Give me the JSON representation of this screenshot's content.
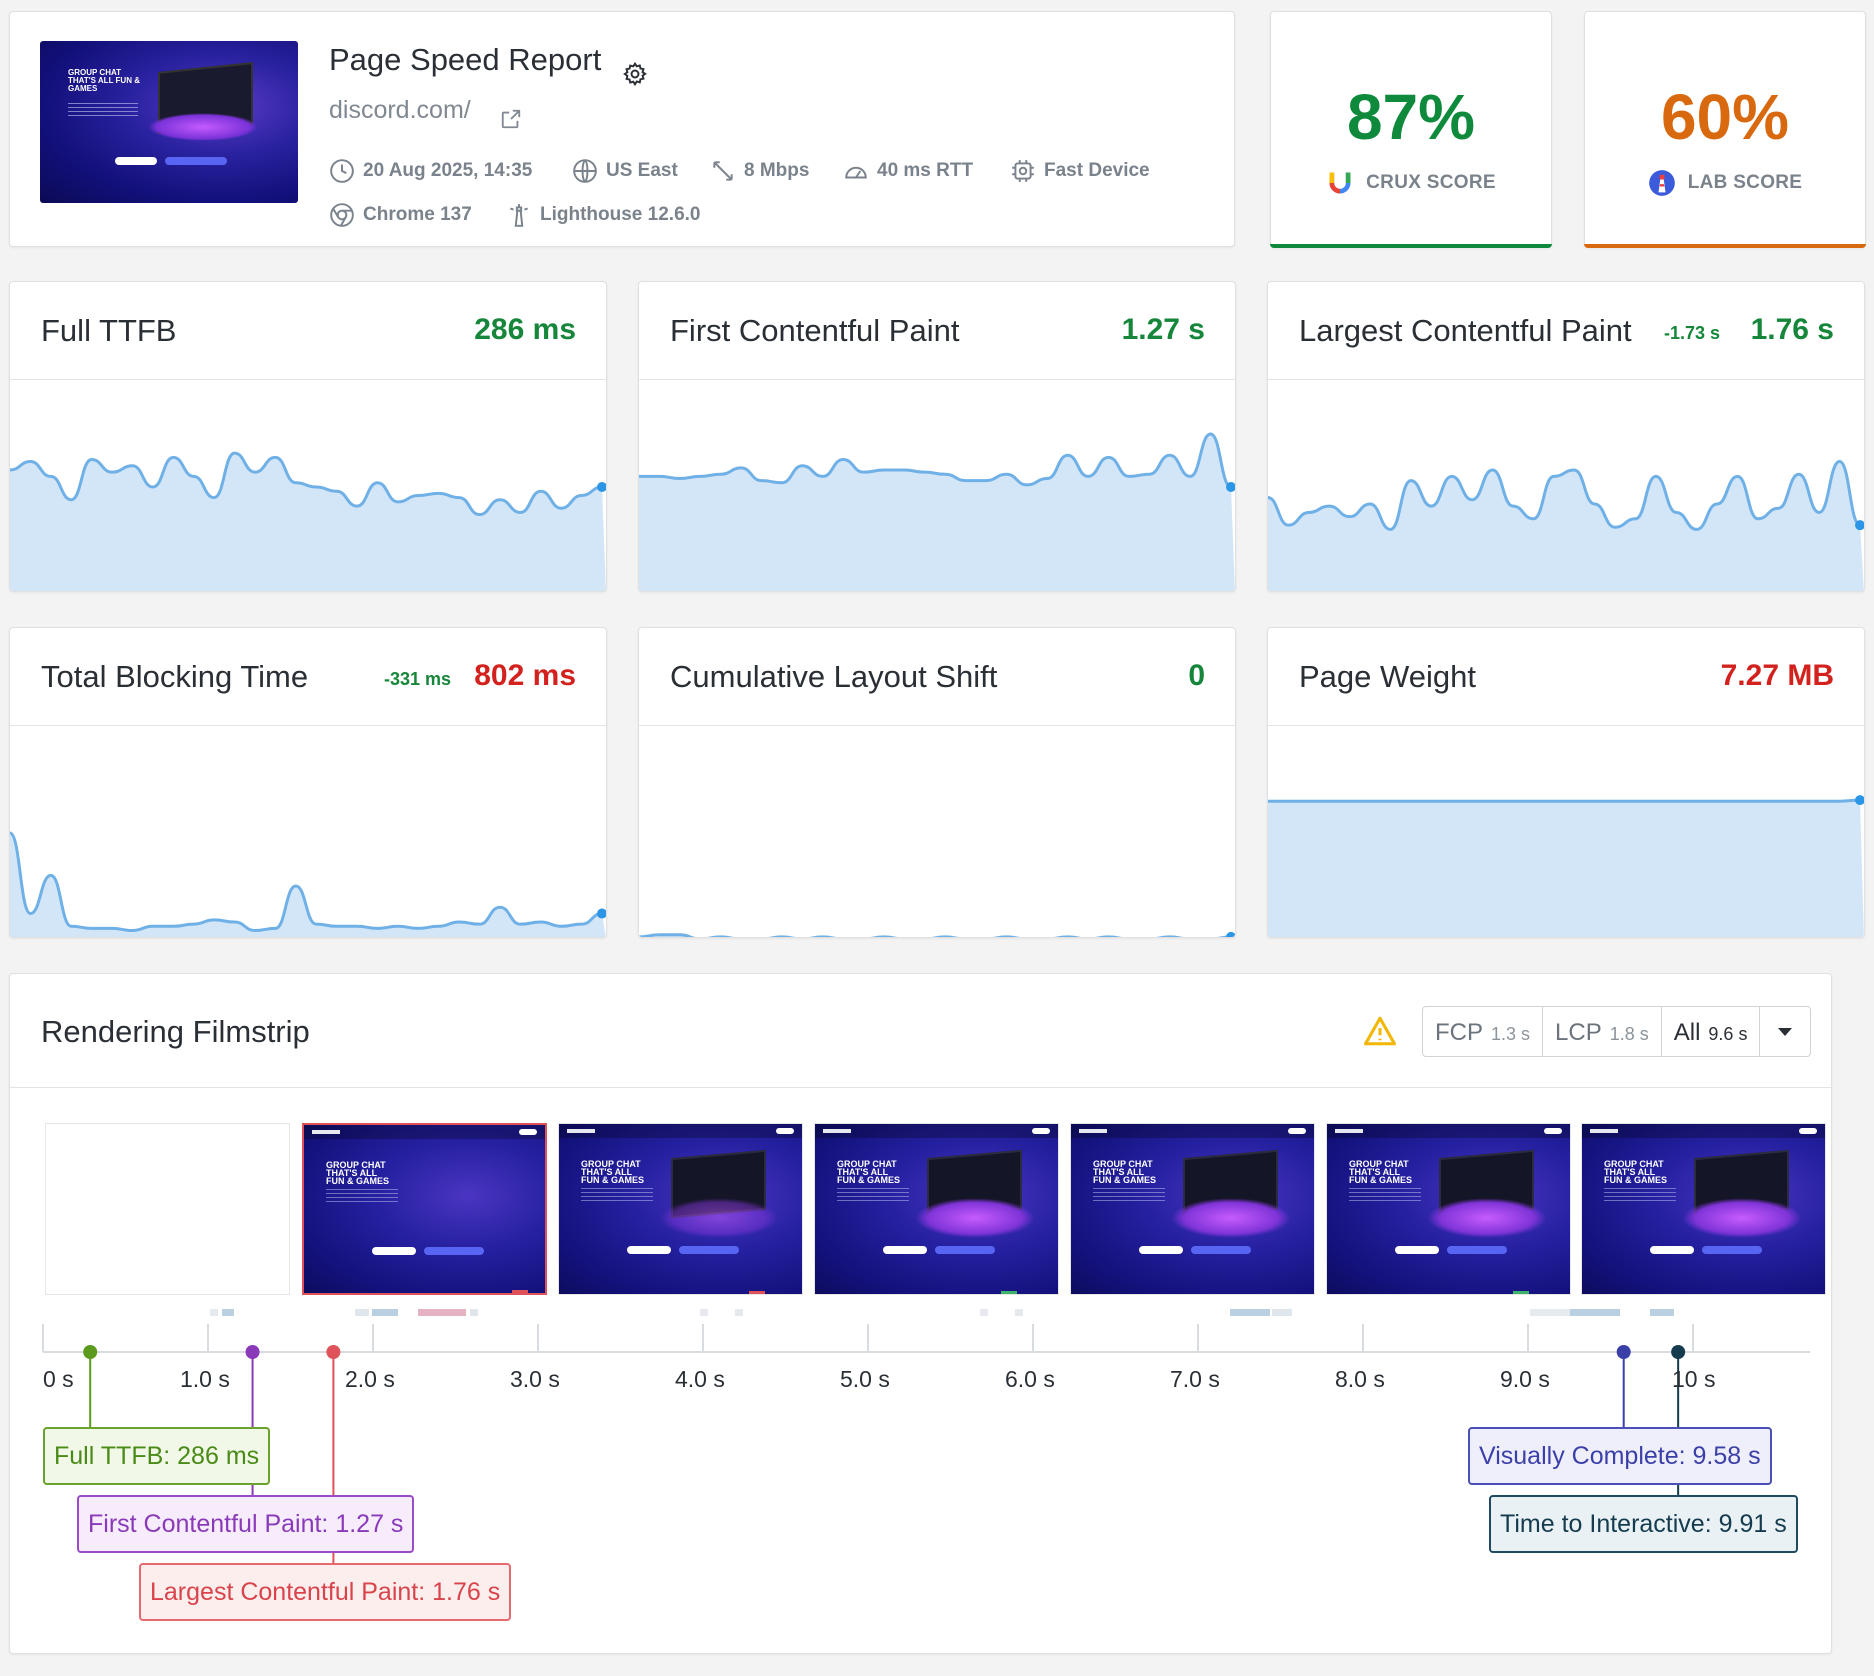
{
  "header": {
    "title": "Page Speed Report",
    "url": "discord.com/",
    "thumbnail_headline": "GROUP CHAT THAT'S ALL FUN & GAMES",
    "meta": {
      "date": "20 Aug 2025, 14:35",
      "location": "US East",
      "bandwidth": "8 Mbps",
      "rtt": "40 ms RTT",
      "device": "Fast Device",
      "browser": "Chrome 137",
      "lighthouse": "Lighthouse 12.6.0"
    }
  },
  "scores": {
    "crux": {
      "value": "87%",
      "label": "CRUX SCORE",
      "color": "#0f8a3c"
    },
    "lab": {
      "value": "60%",
      "label": "LAB SCORE",
      "color": "#d9690f"
    }
  },
  "colors": {
    "good": "#15863a",
    "poor": "#d3221e",
    "chart_line": "#6fb0e6",
    "chart_fill": "#d3e6f8",
    "ttfb": "#5a9a1d",
    "fcp": "#8a3ab9",
    "lcp": "#e0525a",
    "visually_complete": "#3b3fa8",
    "tti": "#153b4f"
  },
  "metrics": [
    {
      "name": "Full TTFB",
      "value": "286 ms",
      "delta": "",
      "status": "good",
      "series": [
        0.58,
        0.62,
        0.55,
        0.44,
        0.63,
        0.57,
        0.6,
        0.5,
        0.64,
        0.55,
        0.45,
        0.66,
        0.57,
        0.64,
        0.52,
        0.5,
        0.48,
        0.41,
        0.52,
        0.43,
        0.46,
        0.47,
        0.45,
        0.37,
        0.44,
        0.38,
        0.48,
        0.4,
        0.46,
        0.5
      ]
    },
    {
      "name": "First Contentful Paint",
      "value": "1.27 s",
      "status": "good",
      "delta": "",
      "series": [
        0.55,
        0.55,
        0.54,
        0.55,
        0.56,
        0.59,
        0.53,
        0.52,
        0.6,
        0.55,
        0.63,
        0.57,
        0.58,
        0.58,
        0.57,
        0.56,
        0.53,
        0.53,
        0.56,
        0.51,
        0.54,
        0.65,
        0.55,
        0.64,
        0.55,
        0.56,
        0.65,
        0.55,
        0.75,
        0.5
      ]
    },
    {
      "name": "Largest Contentful Paint",
      "value": "1.76 s",
      "status": "good",
      "delta": "-1.73 s",
      "series": [
        0.45,
        0.32,
        0.38,
        0.41,
        0.36,
        0.42,
        0.3,
        0.53,
        0.41,
        0.55,
        0.44,
        0.58,
        0.41,
        0.35,
        0.55,
        0.58,
        0.42,
        0.31,
        0.35,
        0.55,
        0.38,
        0.3,
        0.42,
        0.55,
        0.35,
        0.4,
        0.56,
        0.38,
        0.62,
        0.32
      ]
    },
    {
      "name": "Total Blocking Time",
      "value": "802 ms",
      "status": "poor",
      "delta": "-331 ms",
      "series": [
        0.5,
        0.12,
        0.3,
        0.06,
        0.05,
        0.05,
        0.04,
        0.06,
        0.06,
        0.07,
        0.09,
        0.08,
        0.04,
        0.05,
        0.25,
        0.07,
        0.06,
        0.06,
        0.05,
        0.06,
        0.05,
        0.06,
        0.08,
        0.07,
        0.15,
        0.07,
        0.08,
        0.06,
        0.07,
        0.12
      ]
    },
    {
      "name": "Cumulative Layout Shift",
      "value": "0",
      "status": "good",
      "delta": "",
      "series": [
        0.01,
        0.02,
        0.02,
        0.0,
        0.01,
        0.0,
        0.0,
        0.01,
        0.0,
        0.01,
        0.0,
        0.0,
        0.01,
        0.0,
        0.0,
        0.01,
        0.0,
        0.0,
        0.01,
        0.0,
        0.0,
        0.01,
        0.0,
        0.01,
        0.0,
        0.0,
        0.01,
        0.0,
        0.0,
        0.01
      ]
    },
    {
      "name": "Page Weight",
      "value": "7.27 MB",
      "status": "poor",
      "delta": "",
      "series": [
        0.65,
        0.65,
        0.65,
        0.65,
        0.65,
        0.65,
        0.65,
        0.65,
        0.65,
        0.65,
        0.65,
        0.65,
        0.65,
        0.65,
        0.65,
        0.65,
        0.65,
        0.65,
        0.65,
        0.65,
        0.65,
        0.65,
        0.65,
        0.65,
        0.65,
        0.65,
        0.65,
        0.65,
        0.65,
        0.655
      ]
    }
  ],
  "filmstrip": {
    "title": "Rendering Filmstrip",
    "filters": [
      {
        "label": "FCP",
        "value": "1.3 s",
        "active": false
      },
      {
        "label": "LCP",
        "value": "1.8 s",
        "active": false
      },
      {
        "label": "All",
        "value": "9.6 s",
        "active": true
      }
    ],
    "frame_headline": "GROUP CHAT THAT'S ALL FUN & GAMES",
    "ticks": [
      "0 s",
      "1.0 s",
      "2.0 s",
      "3.0 s",
      "4.0 s",
      "5.0 s",
      "6.0 s",
      "7.0 s",
      "8.0 s",
      "9.0 s",
      "10 s"
    ],
    "markers": [
      {
        "label": "Full TTFB: 286 ms",
        "time": 0.286
      },
      {
        "label": "First Contentful Paint: 1.27 s",
        "time": 1.27
      },
      {
        "label": "Largest Contentful Paint: 1.76 s",
        "time": 1.76
      },
      {
        "label": "Visually Complete: 9.58 s",
        "time": 9.58
      },
      {
        "label": "Time to Interactive: 9.91 s",
        "time": 9.91
      }
    ]
  }
}
